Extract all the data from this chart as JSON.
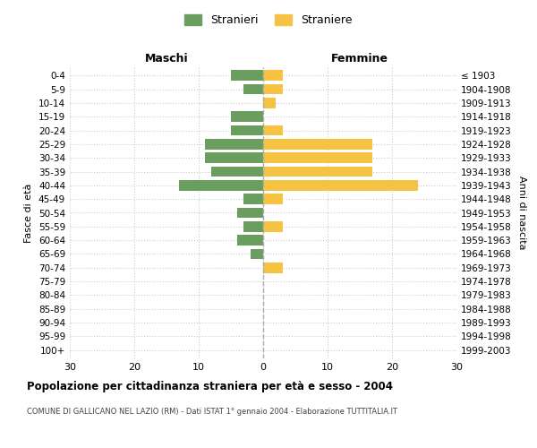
{
  "age_groups": [
    "0-4",
    "5-9",
    "10-14",
    "15-19",
    "20-24",
    "25-29",
    "30-34",
    "35-39",
    "40-44",
    "45-49",
    "50-54",
    "55-59",
    "60-64",
    "65-69",
    "70-74",
    "75-79",
    "80-84",
    "85-89",
    "90-94",
    "95-99",
    "100+"
  ],
  "birth_years": [
    "1999-2003",
    "1994-1998",
    "1989-1993",
    "1984-1988",
    "1979-1983",
    "1974-1978",
    "1969-1973",
    "1964-1968",
    "1959-1963",
    "1954-1958",
    "1949-1953",
    "1944-1948",
    "1939-1943",
    "1934-1938",
    "1929-1933",
    "1924-1928",
    "1919-1923",
    "1914-1918",
    "1909-1913",
    "1904-1908",
    "≤ 1903"
  ],
  "maschi": [
    5,
    3,
    0,
    5,
    5,
    9,
    9,
    8,
    13,
    3,
    4,
    3,
    4,
    2,
    0,
    0,
    0,
    0,
    0,
    0,
    0
  ],
  "femmine": [
    3,
    3,
    2,
    0,
    3,
    17,
    17,
    17,
    24,
    3,
    0,
    3,
    0,
    0,
    3,
    0,
    0,
    0,
    0,
    0,
    0
  ],
  "male_color": "#6a9e5e",
  "female_color": "#f5c242",
  "legend_male": "Stranieri",
  "legend_female": "Straniere",
  "header_left": "Maschi",
  "header_right": "Femmine",
  "ylabel_left": "Fasce di età",
  "ylabel_right": "Anni di nascita",
  "xlim": 30,
  "title": "Popolazione per cittadinanza straniera per età e sesso - 2004",
  "subtitle": "COMUNE DI GALLICANO NEL LAZIO (RM) - Dati ISTAT 1° gennaio 2004 - Elaborazione TUTTITALIA.IT",
  "grid_color": "#cccccc",
  "background_color": "#ffffff",
  "bar_height": 0.75
}
